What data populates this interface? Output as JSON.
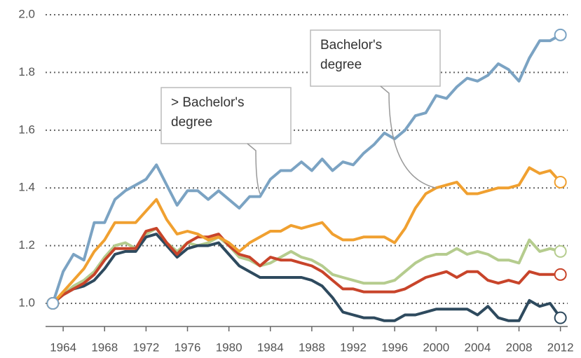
{
  "chart_data": {
    "type": "line",
    "x": [
      1963,
      1964,
      1965,
      1966,
      1967,
      1968,
      1969,
      1970,
      1971,
      1972,
      1973,
      1974,
      1975,
      1976,
      1977,
      1978,
      1979,
      1980,
      1981,
      1982,
      1983,
      1984,
      1985,
      1986,
      1987,
      1988,
      1989,
      1990,
      1991,
      1992,
      1993,
      1994,
      1995,
      1996,
      1997,
      1998,
      1999,
      2000,
      2001,
      2002,
      2003,
      2004,
      2005,
      2006,
      2007,
      2008,
      2009,
      2010,
      2011,
      2012
    ],
    "series": [
      {
        "color": "#b5cc8e",
        "values": [
          1.0,
          1.03,
          1.06,
          1.08,
          1.11,
          1.16,
          1.2,
          1.21,
          1.19,
          1.24,
          1.26,
          1.21,
          1.18,
          1.21,
          1.2,
          1.21,
          1.23,
          1.2,
          1.16,
          1.15,
          1.13,
          1.14,
          1.16,
          1.18,
          1.16,
          1.15,
          1.13,
          1.1,
          1.09,
          1.08,
          1.07,
          1.07,
          1.07,
          1.08,
          1.11,
          1.14,
          1.16,
          1.17,
          1.17,
          1.19,
          1.17,
          1.18,
          1.17,
          1.15,
          1.15,
          1.14,
          1.22,
          1.18,
          1.19,
          1.18
        ]
      },
      {
        "color": "#2e4a5e",
        "values": [
          1.0,
          1.03,
          1.05,
          1.06,
          1.08,
          1.12,
          1.17,
          1.18,
          1.18,
          1.23,
          1.24,
          1.2,
          1.16,
          1.19,
          1.2,
          1.2,
          1.21,
          1.17,
          1.13,
          1.11,
          1.09,
          1.09,
          1.09,
          1.09,
          1.09,
          1.08,
          1.06,
          1.02,
          0.97,
          0.96,
          0.95,
          0.95,
          0.94,
          0.94,
          0.96,
          0.96,
          0.97,
          0.98,
          0.98,
          0.98,
          0.98,
          0.96,
          0.99,
          0.95,
          0.94,
          0.94,
          1.01,
          0.99,
          1.0,
          0.95
        ]
      },
      {
        "color": "#c8442a",
        "values": [
          1.0,
          1.03,
          1.05,
          1.07,
          1.1,
          1.15,
          1.19,
          1.19,
          1.19,
          1.25,
          1.26,
          1.21,
          1.17,
          1.21,
          1.23,
          1.23,
          1.24,
          1.2,
          1.17,
          1.16,
          1.13,
          1.16,
          1.15,
          1.15,
          1.14,
          1.13,
          1.11,
          1.08,
          1.05,
          1.05,
          1.04,
          1.04,
          1.04,
          1.04,
          1.05,
          1.07,
          1.09,
          1.1,
          1.11,
          1.09,
          1.11,
          1.11,
          1.08,
          1.07,
          1.08,
          1.07,
          1.11,
          1.1,
          1.1,
          1.1
        ]
      },
      {
        "color": "#f0a030",
        "values": [
          1.0,
          1.04,
          1.08,
          1.12,
          1.18,
          1.22,
          1.28,
          1.28,
          1.28,
          1.32,
          1.36,
          1.29,
          1.24,
          1.25,
          1.24,
          1.22,
          1.23,
          1.21,
          1.18,
          1.21,
          1.23,
          1.25,
          1.25,
          1.27,
          1.26,
          1.27,
          1.28,
          1.24,
          1.22,
          1.22,
          1.23,
          1.23,
          1.23,
          1.21,
          1.26,
          1.33,
          1.38,
          1.4,
          1.41,
          1.42,
          1.38,
          1.38,
          1.39,
          1.4,
          1.4,
          1.41,
          1.47,
          1.45,
          1.46,
          1.42
        ]
      },
      {
        "color": "#7ba3c3",
        "values": [
          1.0,
          1.11,
          1.17,
          1.15,
          1.28,
          1.28,
          1.36,
          1.39,
          1.41,
          1.43,
          1.48,
          1.41,
          1.34,
          1.39,
          1.39,
          1.36,
          1.39,
          1.36,
          1.33,
          1.37,
          1.37,
          1.43,
          1.46,
          1.46,
          1.49,
          1.46,
          1.5,
          1.46,
          1.49,
          1.48,
          1.52,
          1.55,
          1.59,
          1.57,
          1.6,
          1.65,
          1.66,
          1.72,
          1.71,
          1.75,
          1.78,
          1.77,
          1.79,
          1.83,
          1.81,
          1.77,
          1.85,
          1.91,
          1.91,
          1.93
        ]
      }
    ],
    "annotations": [
      {
        "lines": [
          "> Bachelor's",
          "degree"
        ],
        "x": 1983,
        "y": 1.37
      },
      {
        "lines": [
          "Bachelor's",
          "degree"
        ],
        "x": 2000,
        "y": 1.39
      }
    ],
    "xlim": [
      1962.3,
      2012.7
    ],
    "xticks": [
      1964,
      1968,
      1972,
      1976,
      1980,
      1984,
      1988,
      1992,
      1996,
      2000,
      2004,
      2008,
      2012
    ],
    "ylim": [
      0.92,
      2.0
    ],
    "yticks": [
      {
        "value": 1,
        "label": "1.0"
      },
      1.2,
      1.4,
      1.6,
      1.8,
      {
        "value": 2,
        "label": "2.0"
      }
    ],
    "grid": true
  }
}
